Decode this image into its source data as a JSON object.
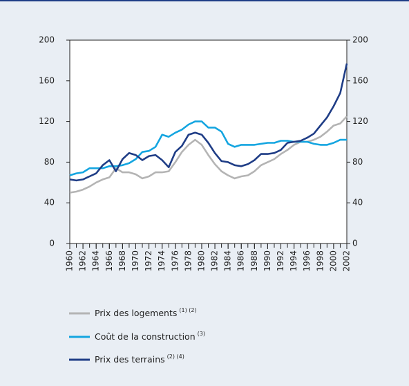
{
  "chart_data": {
    "type": "line",
    "x": [
      1960,
      1961,
      1962,
      1963,
      1964,
      1965,
      1966,
      1967,
      1968,
      1969,
      1970,
      1971,
      1972,
      1973,
      1974,
      1975,
      1976,
      1977,
      1978,
      1979,
      1980,
      1981,
      1982,
      1983,
      1984,
      1985,
      1986,
      1987,
      1988,
      1989,
      1990,
      1991,
      1992,
      1993,
      1994,
      1995,
      1996,
      1997,
      1998,
      1999,
      2000,
      2001,
      2002
    ],
    "xlim": [
      1960,
      2002
    ],
    "xticks": [
      1960,
      1962,
      1964,
      1966,
      1968,
      1970,
      1972,
      1974,
      1976,
      1978,
      1980,
      1982,
      1984,
      1986,
      1988,
      1990,
      1992,
      1994,
      1996,
      1998,
      2000,
      2002
    ],
    "ylim": [
      0,
      200
    ],
    "yticks": [
      0,
      40,
      80,
      120,
      160,
      200
    ],
    "y2lim": [
      0,
      200
    ],
    "y2ticks": [
      0,
      40,
      80,
      120,
      160,
      200
    ],
    "series": [
      {
        "name": "Prix des logements",
        "note": "(1) (2)",
        "color": "#b4b4b4",
        "values": [
          50,
          51,
          53,
          56,
          60,
          63,
          65,
          74,
          70,
          70,
          68,
          64,
          66,
          70,
          70,
          71,
          80,
          90,
          97,
          102,
          97,
          87,
          78,
          71,
          67,
          64,
          66,
          67,
          71,
          77,
          80,
          83,
          88,
          92,
          97,
          100,
          100,
          102,
          105,
          110,
          116,
          118,
          125
        ]
      },
      {
        "name": "Coût de la construction",
        "note": "(3)",
        "color": "#14a5e0",
        "values": [
          67,
          69,
          70,
          74,
          74,
          74,
          76,
          76,
          77,
          79,
          83,
          90,
          91,
          95,
          107,
          105,
          109,
          112,
          117,
          120,
          120,
          114,
          114,
          110,
          98,
          95,
          97,
          97,
          97,
          98,
          99,
          99,
          101,
          101,
          100,
          100,
          100,
          98,
          97,
          97,
          99,
          102,
          102
        ]
      },
      {
        "name": "Prix des terrains",
        "note": "(2) (4)",
        "color": "#1f3d86",
        "values": [
          63,
          62,
          63,
          66,
          69,
          77,
          82,
          71,
          83,
          89,
          87,
          82,
          86,
          87,
          82,
          75,
          90,
          96,
          107,
          109,
          107,
          99,
          89,
          81,
          80,
          77,
          76,
          78,
          82,
          88,
          88,
          89,
          92,
          99,
          100,
          101,
          104,
          108,
          116,
          124,
          135,
          148,
          177
        ]
      }
    ]
  }
}
